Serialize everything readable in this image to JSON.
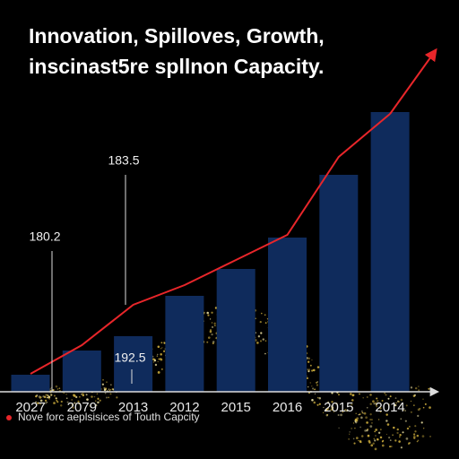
{
  "chart_data": {
    "type": "bar",
    "title": "Innovation, Spilloves, Growth,",
    "subtitle": "inscinast5re spllnon Capacity.",
    "categories": [
      "2027",
      "2079",
      "2013",
      "2012",
      "2015",
      "2016",
      "2015",
      "2014"
    ],
    "series": [
      {
        "type": "bar",
        "color": "#0f2b5c",
        "values": [
          19,
          46,
          62,
          107,
          137,
          172,
          242,
          312
        ]
      },
      {
        "type": "line",
        "name": "Nove forc aeplsisices of Touth Capcity",
        "color": "#e8262a",
        "values": [
          20,
          52,
          97,
          119,
          147,
          175,
          262,
          310
        ]
      }
    ],
    "annotations": [
      "183.5",
      "180.2",
      "192.5"
    ],
    "ylim": [
      0,
      330
    ]
  }
}
